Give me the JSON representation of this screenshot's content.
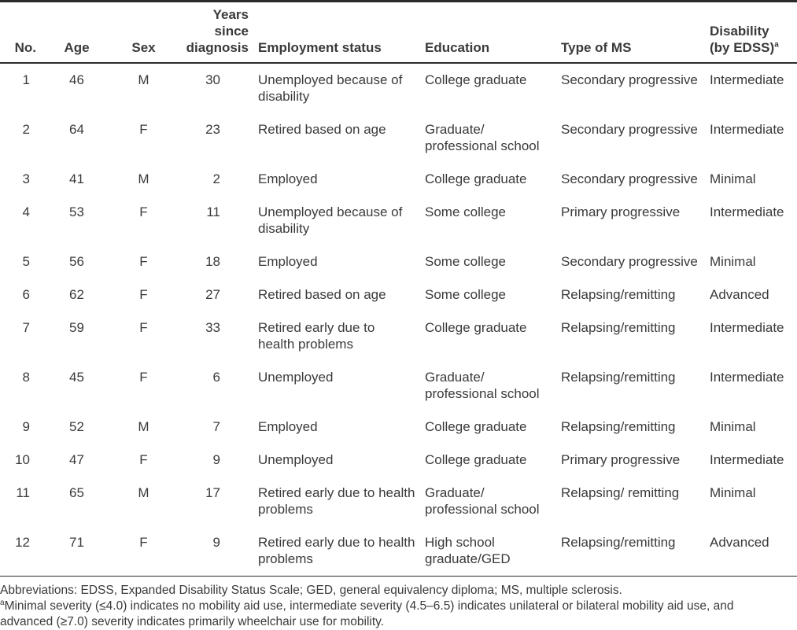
{
  "colors": {
    "text": "#3a3a3a",
    "rule": "#2b2b2b",
    "background": "#ffffff"
  },
  "table": {
    "columns": [
      {
        "key": "no",
        "label": "No."
      },
      {
        "key": "age",
        "label": "Age"
      },
      {
        "key": "sex",
        "label": "Sex"
      },
      {
        "key": "years",
        "label": "Years since\ndiagnosis"
      },
      {
        "key": "employment",
        "label": "Employment status"
      },
      {
        "key": "education",
        "label": "Education"
      },
      {
        "key": "type_ms",
        "label": "Type of MS"
      },
      {
        "key": "disability",
        "label": "Disability\n(by EDSS)",
        "sup": "a"
      }
    ],
    "rows": [
      {
        "no": "1",
        "age": "46",
        "sex": "M",
        "years": "30",
        "employment": "Unemployed because of\ndisability",
        "education": "College graduate",
        "type_ms": "Secondary progressive",
        "disability": "Intermediate"
      },
      {
        "no": "2",
        "age": "64",
        "sex": "F",
        "years": "23",
        "employment": "Retired based on age",
        "education": "Graduate/\nprofessional school",
        "type_ms": "Secondary progressive",
        "disability": "Intermediate"
      },
      {
        "no": "3",
        "age": "41",
        "sex": "M",
        "years": "2",
        "employment": "Employed",
        "education": "College graduate",
        "type_ms": "Secondary progressive",
        "disability": "Minimal"
      },
      {
        "no": "4",
        "age": "53",
        "sex": "F",
        "years": "11",
        "employment": "Unemployed because of\ndisability",
        "education": "Some college",
        "type_ms": "Primary progressive",
        "disability": "Intermediate"
      },
      {
        "no": "5",
        "age": "56",
        "sex": "F",
        "years": "18",
        "employment": "Employed",
        "education": "Some college",
        "type_ms": "Secondary progressive",
        "disability": "Minimal"
      },
      {
        "no": "6",
        "age": "62",
        "sex": "F",
        "years": "27",
        "employment": "Retired based on age",
        "education": "Some college",
        "type_ms": "Relapsing/remitting",
        "disability": "Advanced"
      },
      {
        "no": "7",
        "age": "59",
        "sex": "F",
        "years": "33",
        "employment": "Retired early due to\nhealth problems",
        "education": "College graduate",
        "type_ms": "Relapsing/remitting",
        "disability": "Intermediate"
      },
      {
        "no": "8",
        "age": "45",
        "sex": "F",
        "years": "6",
        "employment": "Unemployed",
        "education": "Graduate/\nprofessional school",
        "type_ms": "Relapsing/remitting",
        "disability": "Intermediate"
      },
      {
        "no": "9",
        "age": "52",
        "sex": "M",
        "years": "7",
        "employment": "Employed",
        "education": "College graduate",
        "type_ms": "Relapsing/remitting",
        "disability": "Minimal"
      },
      {
        "no": "10",
        "age": "47",
        "sex": "F",
        "years": "9",
        "employment": "Unemployed",
        "education": "College graduate",
        "type_ms": "Primary progressive",
        "disability": "Intermediate"
      },
      {
        "no": "11",
        "age": "65",
        "sex": "M",
        "years": "17",
        "employment": "Retired early due to health\nproblems",
        "education": "Graduate/\nprofessional school",
        "type_ms": "Relapsing/ remitting",
        "disability": "Minimal"
      },
      {
        "no": "12",
        "age": "71",
        "sex": "F",
        "years": "9",
        "employment": "Retired early due to health\nproblems",
        "education": "High school\ngraduate/GED",
        "type_ms": "Relapsing/remitting",
        "disability": "Advanced"
      }
    ]
  },
  "footnotes": {
    "abbreviations": "Abbreviations: EDSS, Expanded Disability Status Scale; GED, general equivalency diploma; MS, multiple sclerosis.",
    "severity_sup": "a",
    "severity_text": "Minimal severity (≤4.0) indicates no mobility aid use, intermediate severity (4.5–6.5) indicates unilateral or bilateral mobility aid use, and\nadvanced (≥7.0) severity indicates primarily wheelchair use for mobility."
  }
}
